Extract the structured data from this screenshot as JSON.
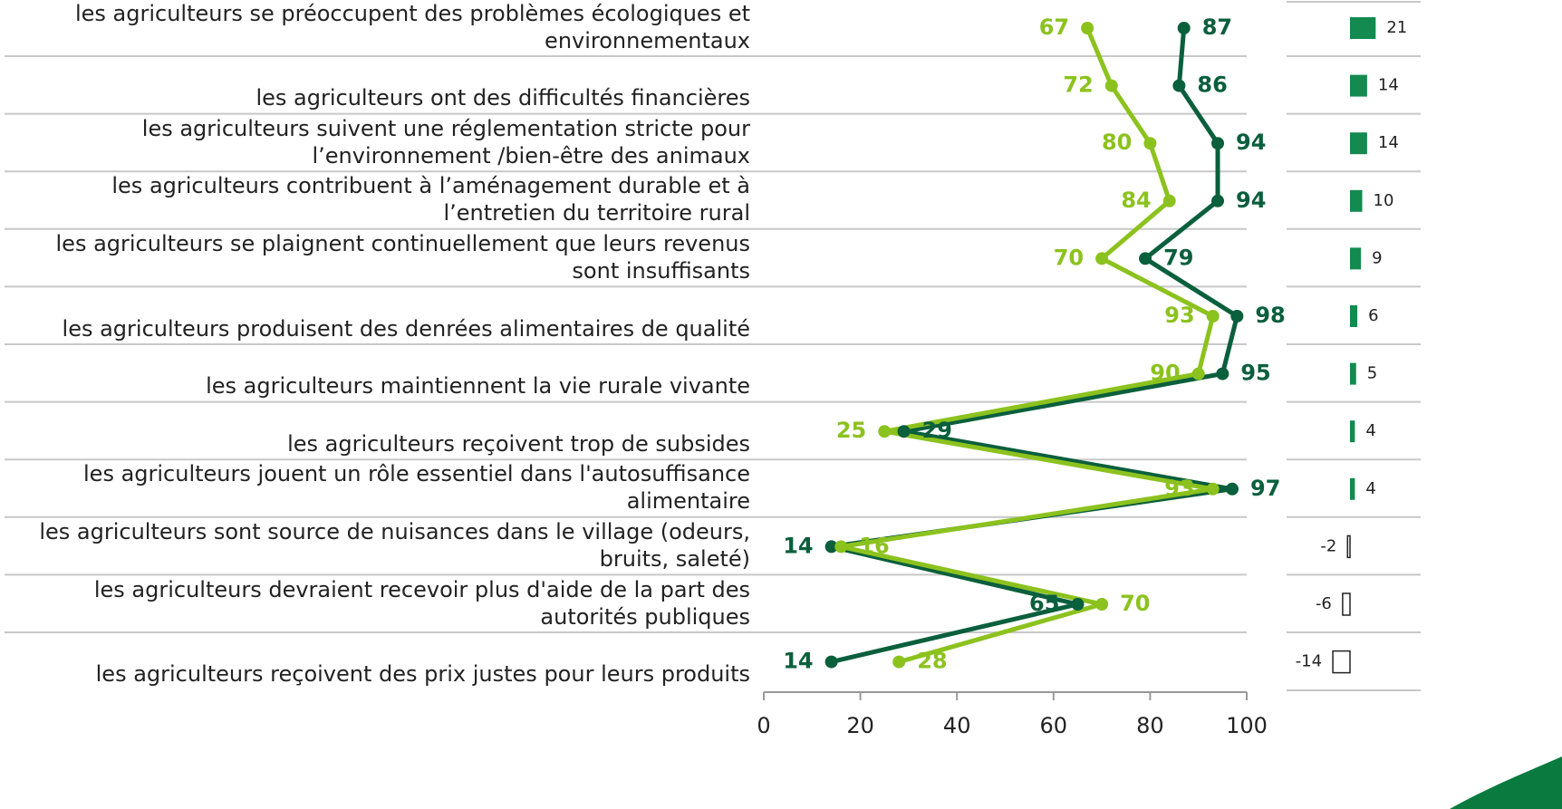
{
  "chart_data": [
    {
      "type": "line",
      "categories": [
        "les agriculteurs se préoccupent des problèmes écologiques et environnementaux",
        "les agriculteurs ont des difficultés financières",
        "les agriculteurs suivent une réglementation  stricte pour l’environnement /bien-être des animaux",
        "les agriculteurs contribuent à l’aménagement durable et à l’entretien du territoire rural",
        "les agriculteurs se plaignent continuellement que leurs revenus sont insuffisants",
        "les agriculteurs produisent des denrées alimentaires de qualité",
        "les agriculteurs maintiennent la vie rurale vivante",
        "les agriculteurs reçoivent trop de subsides",
        "les agriculteurs jouent un rôle essentiel dans l'autosuffisance alimentaire",
        "les agriculteurs sont source de nuisances dans le village (odeurs, bruits, saleté)",
        "les agriculteurs devraient recevoir plus d'aide de la part des autorités publiques",
        "les agriculteurs reçoivent des prix justes pour leurs produits"
      ],
      "series": [
        {
          "color": "#0a5f3c",
          "values": [
            87,
            86,
            94,
            94,
            79,
            98,
            95,
            29,
            97,
            14,
            65,
            14
          ]
        },
        {
          "color": "#8cc21e",
          "values": [
            67,
            72,
            80,
            84,
            70,
            93,
            90,
            25,
            93,
            16,
            70,
            28
          ]
        }
      ],
      "xlim": [
        0,
        100
      ],
      "xticks": [
        0,
        20,
        40,
        60,
        80,
        100
      ]
    },
    {
      "type": "bar",
      "color": "#138a4f",
      "values": [
        21,
        14,
        14,
        10,
        9,
        6,
        5,
        4,
        4,
        -2,
        -6,
        -14
      ]
    }
  ]
}
